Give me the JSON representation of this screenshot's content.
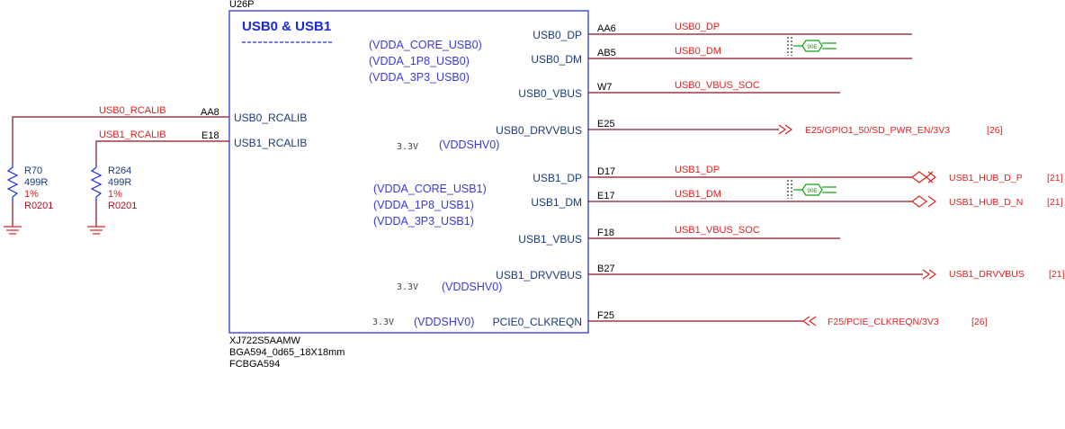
{
  "component": {
    "refdes": "U26P",
    "title": "USB0 & USB1",
    "part_number": "XJ722S5AAMW",
    "footprint": "BGA594_0d65_18X18mm",
    "package": "FCBGA594"
  },
  "power_domains": {
    "usb0": [
      "(VDDA_CORE_USB0)",
      "(VDDA_1P8_USB0)",
      "(VDDA_3P3_USB0)"
    ],
    "usb1": [
      "(VDDA_CORE_USB1)",
      "(VDDA_1P8_USB1)",
      "(VDDA_3P3_USB1)"
    ],
    "vddshv_1": {
      "voltage": "3.3V",
      "name": "(VDDSHV0)"
    },
    "vddshv_2": {
      "voltage": "3.3V",
      "name": "(VDDSHV0)"
    },
    "vddshv_3": {
      "voltage": "3.3V",
      "name": "(VDDSHV0)"
    }
  },
  "left_pins": [
    {
      "ball": "AA8",
      "name": "USB0_RCALIB",
      "net": "USB0_RCALIB"
    },
    {
      "ball": "E18",
      "name": "USB1_RCALIB",
      "net": "USB1_RCALIB"
    }
  ],
  "resistors": [
    {
      "ref": "R70",
      "value": "499R",
      "tolerance": "1%",
      "size": "R0201"
    },
    {
      "ref": "R264",
      "value": "499R",
      "tolerance": "1%",
      "size": "R0201"
    }
  ],
  "right_pins": [
    {
      "name": "USB0_DP",
      "ball": "AA6",
      "net": "USB0_DP"
    },
    {
      "name": "USB0_DM",
      "ball": "AB5",
      "net": "USB0_DM"
    },
    {
      "name": "USB0_VBUS",
      "ball": "W7",
      "net": "USB0_VBUS_SOC"
    },
    {
      "name": "USB0_DRVVBUS",
      "ball": "E25",
      "net": ""
    },
    {
      "name": "USB1_DP",
      "ball": "D17",
      "net": "USB1_DP"
    },
    {
      "name": "USB1_DM",
      "ball": "E17",
      "net": "USB1_DM"
    },
    {
      "name": "USB1_VBUS",
      "ball": "F18",
      "net": "USB1_VBUS_SOC"
    },
    {
      "name": "USB1_DRVVBUS",
      "ball": "B27",
      "net": ""
    },
    {
      "name": "PCIE0_CLKREQN",
      "ball": "F25",
      "net": ""
    }
  ],
  "offpage": [
    {
      "label": "E25/GPIO1_50/SD_PWR_EN/3V3",
      "page": "[26]"
    },
    {
      "label": "USB1_HUB_D_P",
      "page": "[21]"
    },
    {
      "label": "USB1_HUB_D_N",
      "page": "[21]"
    },
    {
      "label": "USB1_DRVVBUS",
      "page": "[21]"
    },
    {
      "label": "F25/PCIE_CLKREQN/3V3",
      "page": "[26]"
    }
  ],
  "diff_pair_label": "90E",
  "colors": {
    "wire": "#8a1020",
    "body": "#1a2ad8",
    "net_label": "#e02020",
    "diff_symbol": "#10a010"
  }
}
